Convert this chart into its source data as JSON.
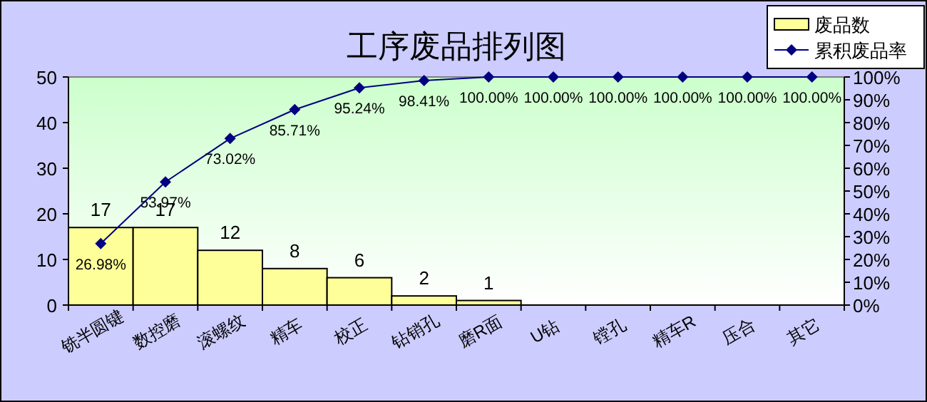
{
  "chart_data": {
    "type": "bar",
    "title": "工序废品排列图",
    "categories": [
      "铣半圆键",
      "数控磨",
      "滚螺纹",
      "精车",
      "校正",
      "钻销孔",
      "磨R面",
      "U钻",
      "镗孔",
      "精车R",
      "压合",
      "其它"
    ],
    "series": [
      {
        "name": "废品数",
        "color": "#ffff99",
        "values": [
          17,
          17,
          12,
          8,
          6,
          2,
          1,
          0,
          0,
          0,
          0,
          0
        ],
        "value_labels": [
          "17",
          "17",
          "12",
          "8",
          "6",
          "2",
          "1",
          null,
          null,
          null,
          null,
          null
        ]
      },
      {
        "name": "累积废品率",
        "type": "line",
        "axis": "y2",
        "marker": "diamond",
        "color": "#000080",
        "values": [
          26.98,
          53.97,
          73.02,
          85.71,
          95.24,
          98.41,
          100,
          100,
          100,
          100,
          100,
          100
        ],
        "value_labels": [
          "26.98%",
          "53.97%",
          "73.02%",
          "85.71%",
          "95.24%",
          "98.41%",
          "100.00%",
          "100.00%",
          "100.00%",
          "100.00%",
          "100.00%",
          "100.00%"
        ]
      }
    ],
    "ylim": [
      0,
      50
    ],
    "yticks": [
      0,
      10,
      20,
      30,
      40,
      50
    ],
    "y2lim": [
      0,
      100
    ],
    "y2ticks": [
      {
        "value": 0,
        "label": "0%"
      },
      {
        "value": 10,
        "label": "10%"
      },
      {
        "value": 20,
        "label": "20%"
      },
      {
        "value": 30,
        "label": "30%"
      },
      {
        "value": 40,
        "label": "40%"
      },
      {
        "value": 50,
        "label": "50%"
      },
      {
        "value": 60,
        "label": "60%"
      },
      {
        "value": 70,
        "label": "70%"
      },
      {
        "value": 80,
        "label": "80%"
      },
      {
        "value": 90,
        "label": "90%"
      },
      {
        "value": 100,
        "label": "100%"
      }
    ],
    "legend": "top right"
  }
}
